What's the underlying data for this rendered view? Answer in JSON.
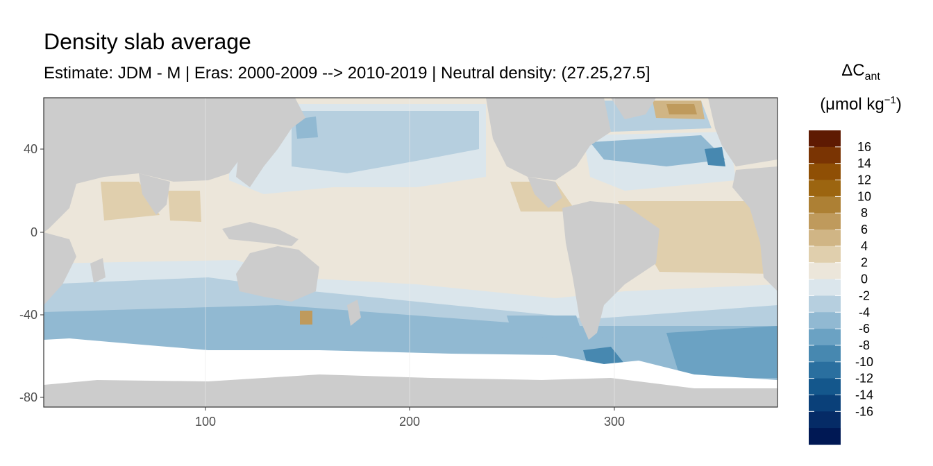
{
  "title": "Density slab average",
  "subtitle": "Estimate: JDM - M | Eras: 2000-2009 --> 2010-2019 | Neutral density: (27.25,27.5]",
  "legend": {
    "title_main": "ΔC",
    "title_sub": "ant",
    "unit_prefix": "(μmol kg",
    "unit_sup": "−1",
    "unit_suffix": ")",
    "labels": [
      "16",
      "14",
      "12",
      "10",
      "8",
      "6",
      "4",
      "2",
      "0",
      "-2",
      "-4",
      "-6",
      "-8",
      "-10",
      "-12",
      "-14",
      "-16"
    ],
    "colors": [
      "#5e1a02",
      "#7a3403",
      "#8f4f05",
      "#9c6510",
      "#ad8034",
      "#bf9a5c",
      "#d0b585",
      "#e0cfad",
      "#ece6da",
      "#dbe6ec",
      "#b6cfdf",
      "#91b9d2",
      "#6ba2c3",
      "#4788b0",
      "#2a6f9f",
      "#14578c",
      "#0a4079",
      "#052b66",
      "#001854"
    ]
  },
  "axes": {
    "x_ticks": [
      "100",
      "200",
      "300"
    ],
    "y_ticks": [
      "40",
      "0",
      "-40",
      "-80"
    ]
  },
  "colors": {
    "land": "#cccccc",
    "ice": "#ffffff",
    "panel_border": "#333333",
    "grid": "#ebebeb"
  }
}
